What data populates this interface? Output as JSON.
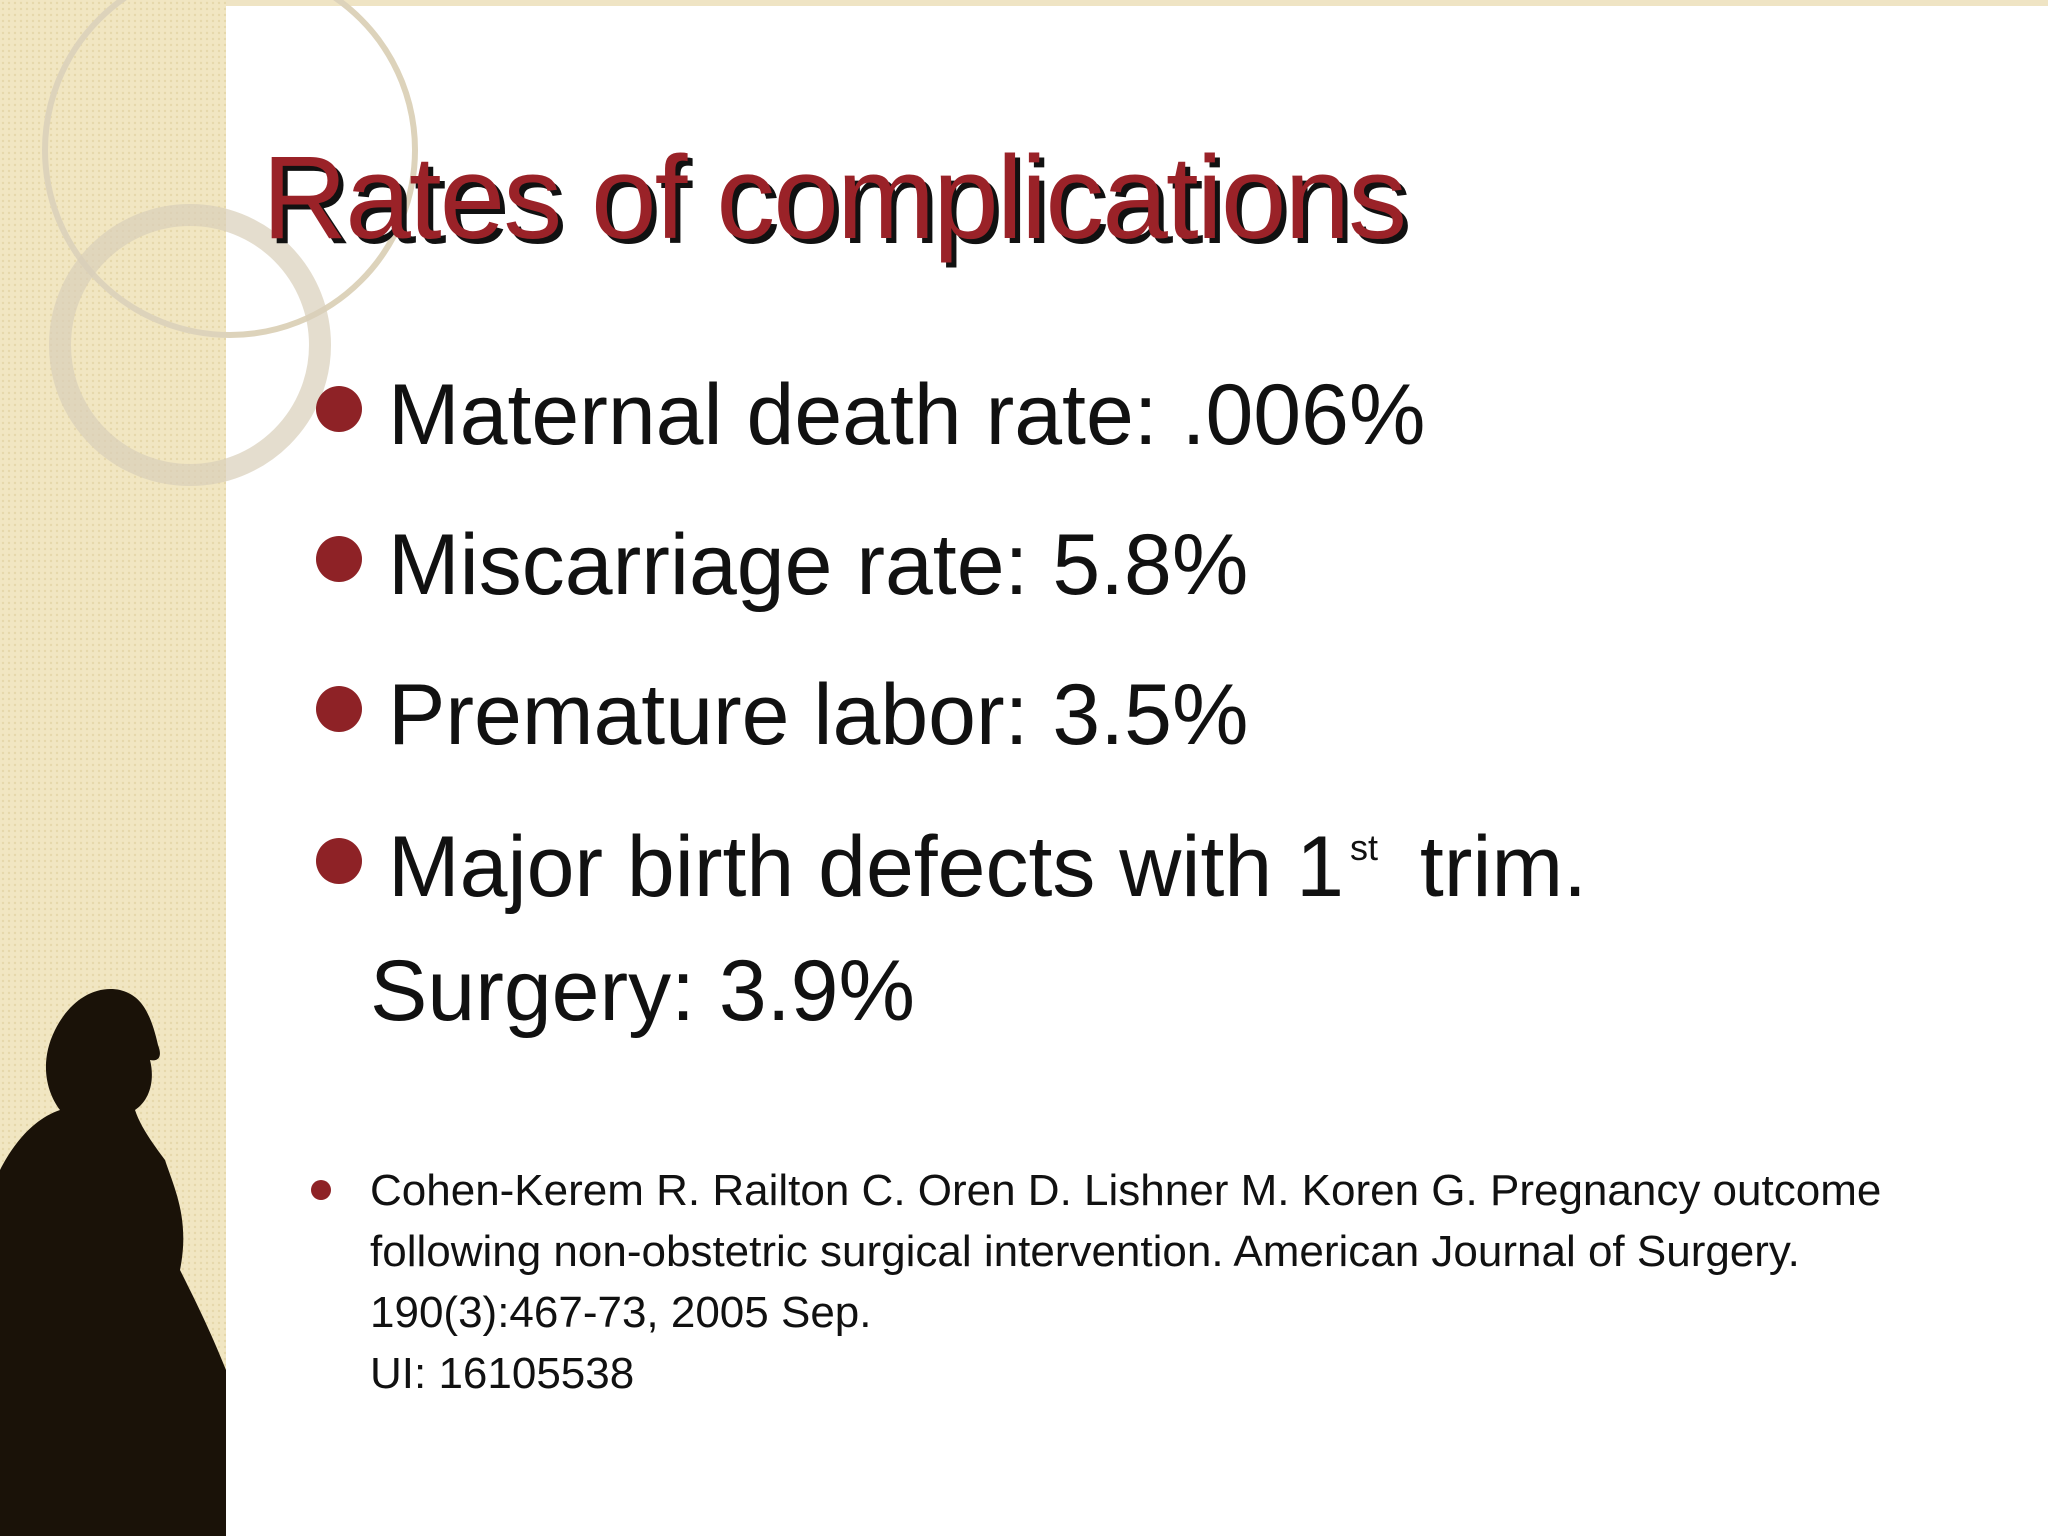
{
  "title": "Rates of complications",
  "bullets": [
    {
      "parts": [
        "Maternal death rate: .006%"
      ]
    },
    {
      "parts": [
        "Miscarriage rate: 5.8%"
      ]
    },
    {
      "parts": [
        "Premature labor: 3.5%"
      ]
    },
    {
      "parts": [
        "Major birth defects with 1",
        "st",
        " trim.",
        "Surgery: 3.9%"
      ]
    }
  ],
  "reference": {
    "lines": [
      "Cohen-Kerem R. Railton C. Oren D. Lishner M. Koren G. Pregnancy outcome",
      "following non-obstetric surgical intervention. American Journal of Surgery.",
      "190(3):467-73, 2005 Sep.",
      "UI: 16105538"
    ]
  }
}
